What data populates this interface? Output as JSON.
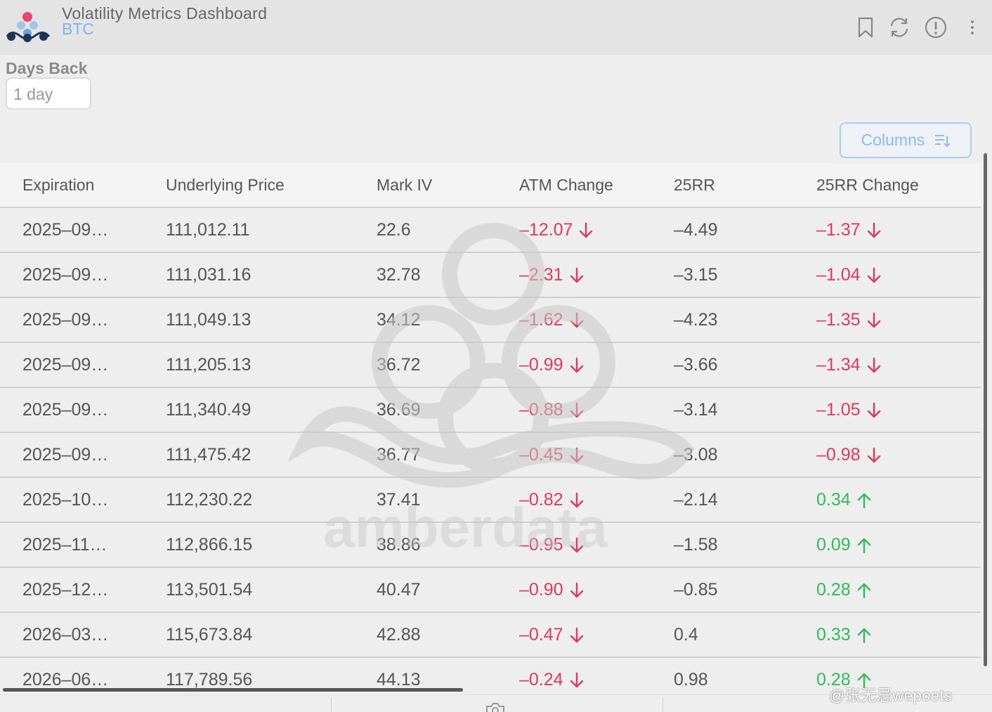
{
  "header": {
    "title": "Volatility Metrics Dashboard",
    "subtitle": "BTC"
  },
  "filters": {
    "days_back_label": "Days Back",
    "days_back_value": "1 day"
  },
  "toolbar": {
    "columns_label": "Columns"
  },
  "table": {
    "columns": [
      "Expiration",
      "Underlying Price",
      "Mark IV",
      "ATM Change",
      "25RR",
      "25RR Change"
    ],
    "rows": [
      {
        "expiration": "2025–09…",
        "price": "111,012.11",
        "mark_iv": "22.6",
        "atm_change": "–12.07",
        "rr25": "–4.49",
        "rr25_change": "–1.37"
      },
      {
        "expiration": "2025–09…",
        "price": "111,031.16",
        "mark_iv": "32.78",
        "atm_change": "–2.31",
        "rr25": "–3.15",
        "rr25_change": "–1.04"
      },
      {
        "expiration": "2025–09…",
        "price": "111,049.13",
        "mark_iv": "34.12",
        "atm_change": "–1.62",
        "rr25": "–4.23",
        "rr25_change": "–1.35"
      },
      {
        "expiration": "2025–09…",
        "price": "111,205.13",
        "mark_iv": "36.72",
        "atm_change": "–0.99",
        "rr25": "–3.66",
        "rr25_change": "–1.34"
      },
      {
        "expiration": "2025–09…",
        "price": "111,340.49",
        "mark_iv": "36.69",
        "atm_change": "–0.88",
        "rr25": "–3.14",
        "rr25_change": "–1.05"
      },
      {
        "expiration": "2025–09…",
        "price": "111,475.42",
        "mark_iv": "36.77",
        "atm_change": "–0.45",
        "rr25": "–3.08",
        "rr25_change": "–0.98"
      },
      {
        "expiration": "2025–10…",
        "price": "112,230.22",
        "mark_iv": "37.41",
        "atm_change": "–0.82",
        "rr25": "–2.14",
        "rr25_change": "0.34"
      },
      {
        "expiration": "2025–11…",
        "price": "112,866.15",
        "mark_iv": "38.86",
        "atm_change": "–0.95",
        "rr25": "–1.58",
        "rr25_change": "0.09"
      },
      {
        "expiration": "2025–12…",
        "price": "113,501.54",
        "mark_iv": "40.47",
        "atm_change": "–0.90",
        "rr25": "–0.85",
        "rr25_change": "0.28"
      },
      {
        "expiration": "2026–03…",
        "price": "115,673.84",
        "mark_iv": "42.88",
        "atm_change": "–0.47",
        "rr25": "0.4",
        "rr25_change": "0.33"
      },
      {
        "expiration": "2026–06…",
        "price": "117,789.56",
        "mark_iv": "44.13",
        "atm_change": "–0.24",
        "rr25": "0.98",
        "rr25_change": "0.28"
      }
    ]
  },
  "watermark": {
    "brand": "amberdata",
    "credit": "@张无忌wepoets"
  },
  "colors": {
    "negative": "#e0395e",
    "positive": "#2fbd5b",
    "accent": "#7db3f3"
  },
  "icons": [
    "bookmark-icon",
    "refresh-icon",
    "info-icon",
    "more-vertical-icon",
    "columns-sort-icon",
    "arrow-down-icon",
    "arrow-up-icon"
  ]
}
